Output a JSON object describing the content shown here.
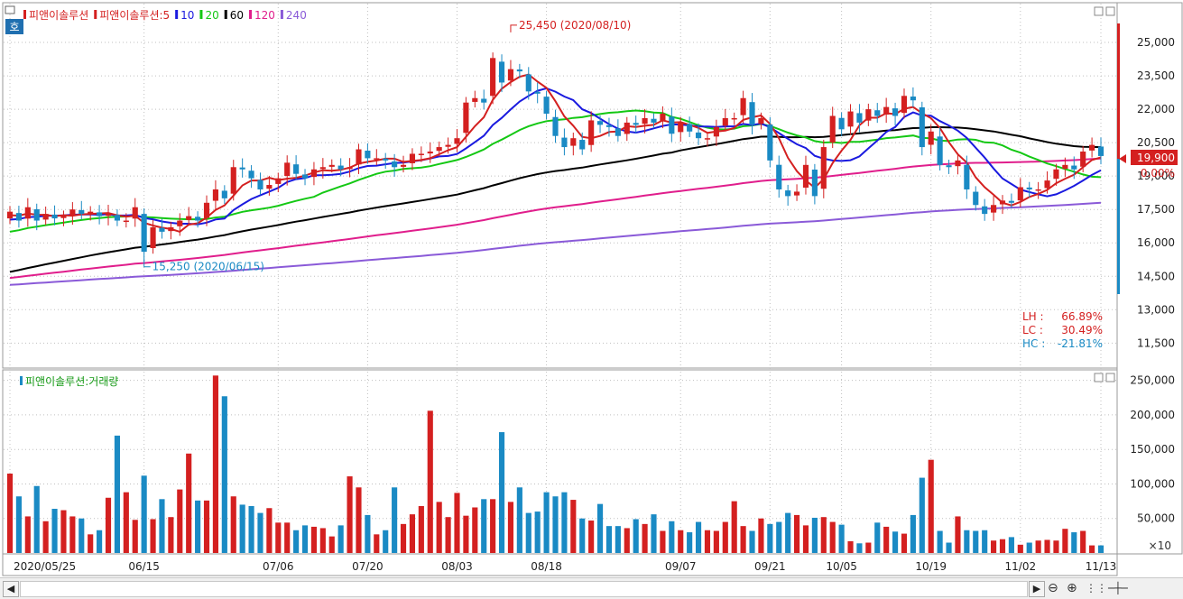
{
  "chart_data": {
    "type": "candlestick",
    "legend": [
      {
        "text": "피앤이솔루션",
        "color": "#d42020"
      },
      {
        "text": "피앤이솔루션:5",
        "color": "#d42020"
      },
      {
        "text": "10",
        "color": "#1a1adf"
      },
      {
        "text": "20",
        "color": "#14c814"
      },
      {
        "text": "60",
        "color": "#000000"
      },
      {
        "text": "120",
        "color": "#e01e8c"
      },
      {
        "text": "240",
        "color": "#8a5ad8"
      }
    ],
    "mode_button": "호",
    "price_ylim": [
      10500,
      26500
    ],
    "price_ticks": [
      "25,000",
      "23,500",
      "22,000",
      "20,500",
      "19,000",
      "17,500",
      "16,000",
      "14,500",
      "13,000",
      "11,500"
    ],
    "volume_ylim": [
      0,
      260000
    ],
    "volume_ticks": [
      "250,000",
      "200,000",
      "150,000",
      "100,000",
      "50,000"
    ],
    "volume_unit": "×10",
    "volume_title": "피앤이솔루션:거래량",
    "x_labels": [
      {
        "i": 0,
        "text": "2020/05/25"
      },
      {
        "i": 15,
        "text": "06/15"
      },
      {
        "i": 30,
        "text": "07/06"
      },
      {
        "i": 40,
        "text": "07/20"
      },
      {
        "i": 50,
        "text": "08/03"
      },
      {
        "i": 60,
        "text": "08/18"
      },
      {
        "i": 75,
        "text": "09/07"
      },
      {
        "i": 85,
        "text": "09/21"
      },
      {
        "i": 93,
        "text": "10/05"
      },
      {
        "i": 103,
        "text": "10/19"
      },
      {
        "i": 113,
        "text": "11/02"
      },
      {
        "i": 122,
        "text": "11/13"
      }
    ],
    "current_price": "19,900",
    "current_change": "0.00%",
    "annotations": [
      {
        "text": "25,450 (2020/08/10)",
        "i": 56,
        "price": 25450,
        "color": "#d42020"
      },
      {
        "text": "15,250 (2020/06/15)",
        "i": 15,
        "price": 15250,
        "color": "#1a8ac4"
      }
    ],
    "stats": [
      {
        "label": "LH :",
        "value": "66.89%"
      },
      {
        "label": "LC :",
        "value": "30.49%"
      },
      {
        "label": "HC :",
        "value": "-21.81%"
      }
    ],
    "closes": [
      17400,
      17000,
      17600,
      17000,
      17300,
      17100,
      17200,
      17500,
      17300,
      17400,
      17200,
      17300,
      17000,
      17000,
      17600,
      15600,
      16700,
      16500,
      16700,
      17000,
      17200,
      17000,
      17800,
      18400,
      18000,
      19400,
      19300,
      18900,
      18400,
      18600,
      18900,
      19600,
      19100,
      18900,
      19300,
      19400,
      19500,
      19300,
      19400,
      20200,
      19800,
      19800,
      19700,
      19400,
      19500,
      20000,
      20000,
      20100,
      20300,
      20400,
      20700,
      22300,
      22500,
      22300,
      24300,
      23200,
      23800,
      23700,
      22800,
      22700,
      21800,
      20800,
      20300,
      20700,
      20200,
      21500,
      21300,
      21200,
      20800,
      21400,
      21300,
      21600,
      21400,
      21800,
      20900,
      21400,
      21000,
      20700,
      20700,
      21200,
      21600,
      21600,
      22500,
      21300,
      21600,
      19700,
      18400,
      18100,
      18300,
      19500,
      18100,
      20300,
      21700,
      21100,
      21900,
      21400,
      22000,
      21700,
      22100,
      21700,
      22600,
      22400,
      20300,
      21000,
      19500,
      19400,
      19700,
      18400,
      17700,
      17300,
      17700,
      17900,
      17800,
      18500,
      18400,
      18400,
      18800,
      19300,
      19500,
      19300,
      20100,
      20400,
      19900
    ],
    "volumes": [
      115000,
      82000,
      53000,
      97000,
      46000,
      64000,
      62000,
      53000,
      50000,
      27000,
      33000,
      80000,
      170000,
      88000,
      48000,
      112000,
      49000,
      78000,
      52000,
      92000,
      144000,
      76000,
      76000,
      257000,
      227000,
      82000,
      70000,
      68000,
      58000,
      65000,
      44000,
      44000,
      33000,
      40000,
      38000,
      36000,
      24000,
      40000,
      111000,
      95000,
      55000,
      27000,
      33000,
      95000,
      42000,
      56000,
      68000,
      206000,
      74000,
      52000,
      87000,
      54000,
      66000,
      78000,
      78000,
      175000,
      74000,
      95000,
      58000,
      60000,
      88000,
      82000,
      88000,
      77000,
      50000,
      47000,
      71000,
      39000,
      39000,
      36000,
      49000,
      42000,
      56000,
      32000,
      46000,
      33000,
      30000,
      45000,
      33000,
      32000,
      45000,
      75000,
      39000,
      32000,
      50000,
      42000,
      45000,
      58000,
      55000,
      40000,
      51000,
      52000,
      45000,
      41000,
      17000,
      14000,
      15000,
      44000,
      38000,
      31000,
      28000,
      55000,
      109000,
      135000,
      32000,
      15000,
      53000,
      33000,
      32000,
      33000,
      18000,
      20000,
      23000,
      12000,
      15000,
      18000,
      19000,
      18000,
      35000,
      30000,
      32000,
      11000,
      11000
    ]
  }
}
